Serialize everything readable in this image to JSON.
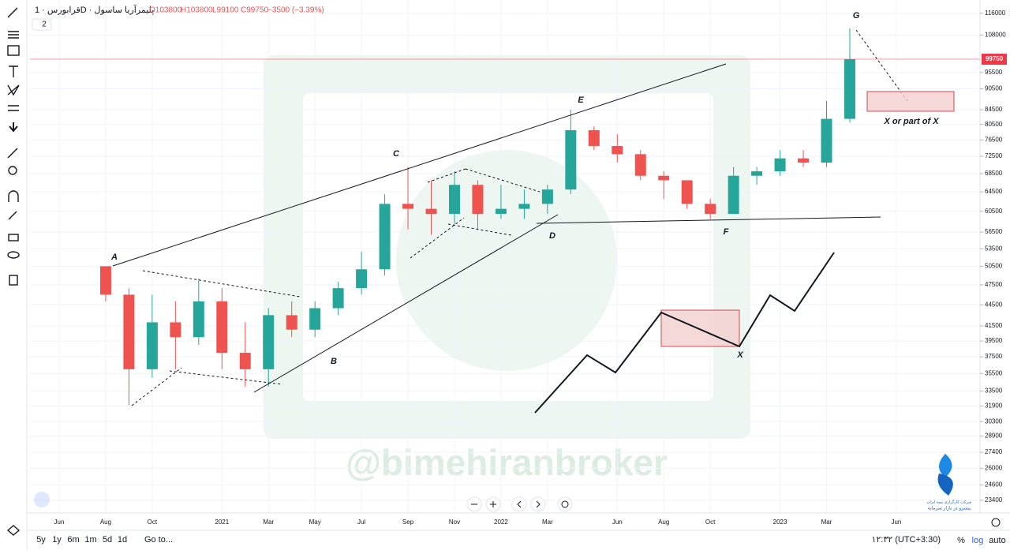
{
  "header": {
    "symbol": "قرابورس · 1D · پلیمرآریا ساسول",
    "open": "O103800",
    "high": "H103800",
    "low": "L99100",
    "close": "C99750",
    "change": "−3500 (−3.39%)",
    "collapse": "2"
  },
  "chart_data": {
    "type": "candlestick",
    "categories": [
      "Jun",
      null,
      "Aug",
      null,
      "Oct",
      null,
      null,
      "2021",
      null,
      "Mar",
      null,
      "May",
      null,
      "Jul",
      null,
      "Sep",
      null,
      "Nov",
      null,
      "2022",
      null,
      "Mar",
      null,
      null,
      "Jun",
      null,
      "Aug",
      null,
      "Oct",
      null,
      null,
      "2023",
      null,
      "Mar",
      null,
      null,
      "Jun",
      null
    ],
    "open": [
      null,
      null,
      50500,
      46000,
      36000,
      42000,
      40000,
      45000,
      38000,
      36000,
      43000,
      41000,
      44000,
      47000,
      50000,
      62000,
      61000,
      60000,
      66000,
      60000,
      61000,
      62000,
      65000,
      79000,
      75000,
      73000,
      68000,
      67000,
      62000,
      60000,
      68000,
      69000,
      72000,
      71000,
      82000,
      null,
      null,
      null
    ],
    "high": [
      null,
      null,
      50500,
      47000,
      46000,
      45000,
      48500,
      47000,
      42000,
      44000,
      45000,
      45000,
      48000,
      53000,
      64000,
      70000,
      67000,
      69000,
      67000,
      66000,
      65000,
      66000,
      84500,
      80000,
      78000,
      74000,
      69000,
      67000,
      63000,
      70000,
      70000,
      74000,
      74000,
      87000,
      110500,
      null,
      null,
      null
    ],
    "low": [
      null,
      null,
      45000,
      32000,
      35000,
      36000,
      39000,
      36000,
      34000,
      34000,
      40000,
      40000,
      43000,
      46000,
      49000,
      57000,
      56000,
      58000,
      57000,
      59000,
      59000,
      60000,
      64000,
      74000,
      71000,
      67000,
      63000,
      61000,
      59000,
      60000,
      66000,
      68000,
      70000,
      70000,
      81000,
      null,
      null,
      null
    ],
    "close": [
      null,
      null,
      46000,
      36000,
      42000,
      40000,
      45000,
      38000,
      36000,
      43000,
      41000,
      44000,
      47000,
      50000,
      62000,
      61000,
      60000,
      66000,
      60000,
      61000,
      62000,
      65000,
      79000,
      75000,
      73000,
      68000,
      67000,
      62000,
      60000,
      68000,
      69000,
      72000,
      71000,
      82000,
      99750,
      null,
      null,
      null
    ],
    "up_color": "#26a69a",
    "down_color": "#ef5350",
    "log_scale": true,
    "grid": true,
    "ylim": [
      22560,
      118700
    ],
    "yticks": [
      116000,
      108000,
      95500,
      90500,
      84500,
      80500,
      76500,
      72500,
      68500,
      64500,
      60500,
      56500,
      53500,
      50500,
      47500,
      44500,
      41500,
      39500,
      37500,
      35500,
      33500,
      31900,
      30300,
      28900,
      27400,
      26000,
      24600,
      23400
    ],
    "last_price": 99750,
    "last_price_color": "#f23645",
    "annotations": [
      "A",
      "B",
      "C",
      "D",
      "E",
      "F",
      "G",
      "X",
      "X or part of  X"
    ],
    "watermark": "@bimehiranbroker"
  },
  "bottom_bar": {
    "ranges": [
      "5y",
      "1y",
      "6m",
      "1m",
      "5d",
      "1d"
    ],
    "goto": "Go to...",
    "clock": "۱۲:۳۲ (UTC+3:30)",
    "percent": "%",
    "log": "log",
    "auto": "auto"
  },
  "logo": {
    "line1": "شرکت کارگزاری بیمه ایران",
    "line2": "پیشرو در بازار سرمایه"
  }
}
